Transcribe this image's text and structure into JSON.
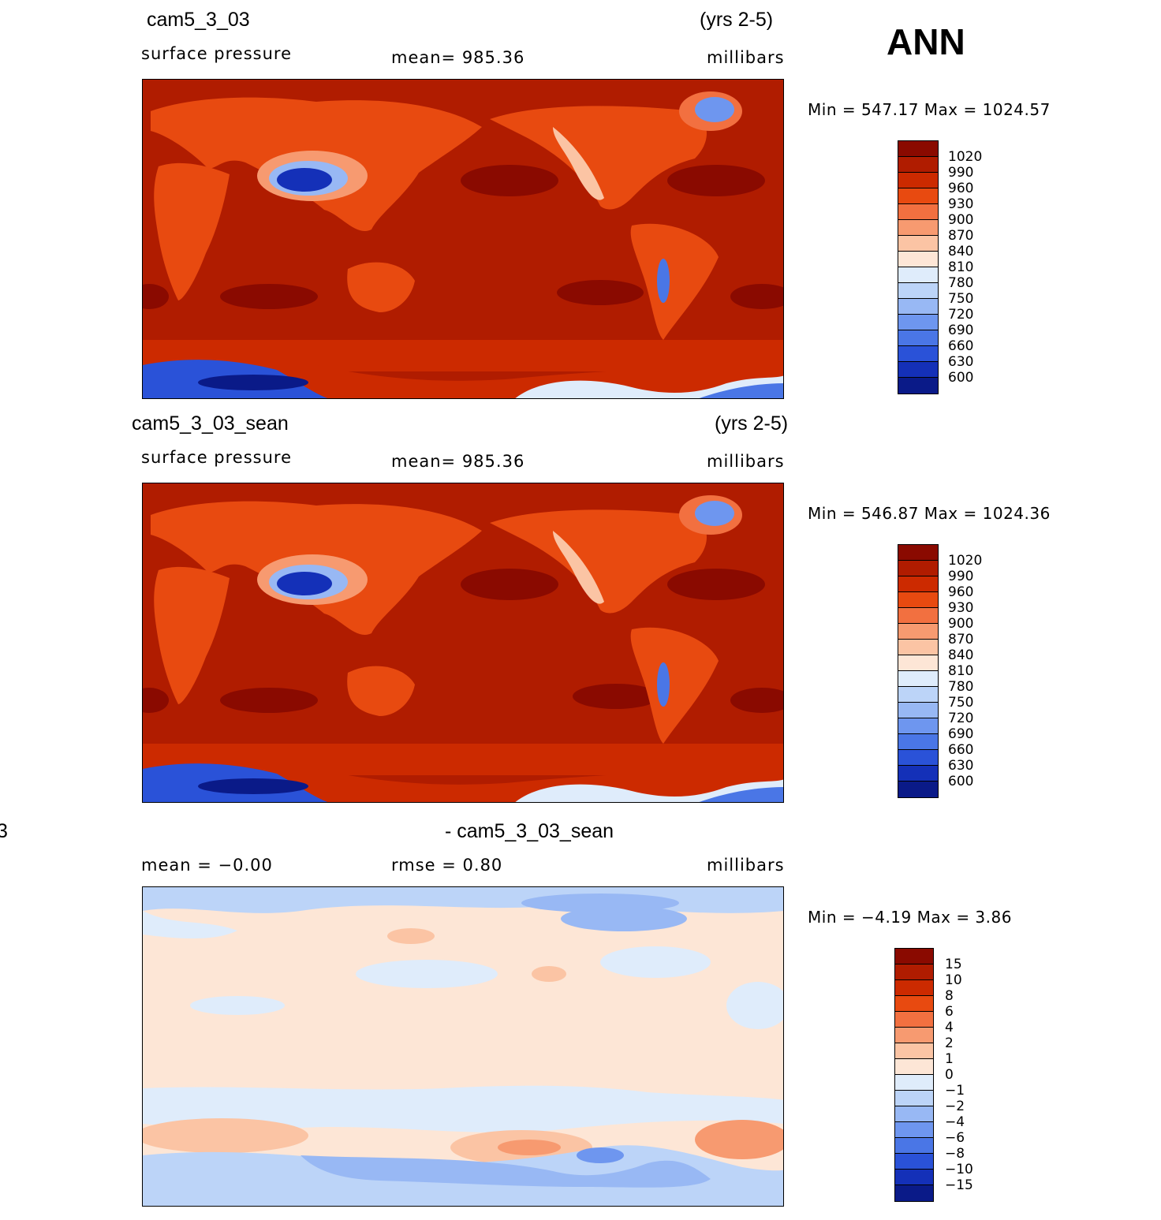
{
  "season": "ANN",
  "panel1": {
    "case": "cam5_3_03",
    "years": "(yrs 2-5)",
    "variable": "surface  pressure",
    "stat": "mean=  985.36",
    "units": "millibars",
    "minmax": "Min  =  547.17  Max  =  1024.57"
  },
  "panel2": {
    "case": "cam5_3_03_sean",
    "years": "(yrs 2-5)",
    "variable": "surface  pressure",
    "stat": "mean=  985.36",
    "units": "millibars",
    "minmax": "Min  =  546.87  Max  =  1024.36"
  },
  "panel3": {
    "title_fragment": "3",
    "title": "- cam5_3_03_sean",
    "mean": "mean  =    −0.00",
    "rmse": "rmse  =      0.80",
    "units": "millibars",
    "minmax": "Min  =    −4.19  Max  =      3.86"
  },
  "colorbar_abs": {
    "labels": [
      "1020",
      "990",
      "960",
      "930",
      "900",
      "870",
      "840",
      "810",
      "780",
      "750",
      "720",
      "690",
      "660",
      "630",
      "600"
    ],
    "colors": [
      "#8a0a00",
      "#b01c00",
      "#cc2a00",
      "#e84a10",
      "#f27040",
      "#f79a70",
      "#fbc4a4",
      "#fde6d6",
      "#dfecfb",
      "#bcd4f8",
      "#98b8f4",
      "#6e96ef",
      "#4a76e6",
      "#2a52d8",
      "#1430b8",
      "#0a1a88"
    ]
  },
  "colorbar_diff": {
    "labels": [
      "15",
      "10",
      "8",
      "6",
      "4",
      "2",
      "1",
      "0",
      "−1",
      "−2",
      "−4",
      "−6",
      "−8",
      "−10",
      "−15"
    ],
    "colors": [
      "#8a0a00",
      "#b01c00",
      "#cc2a00",
      "#e84a10",
      "#f27040",
      "#f79a70",
      "#fbc4a4",
      "#fde6d6",
      "#dfecfb",
      "#bcd4f8",
      "#98b8f4",
      "#6e96ef",
      "#4a76e6",
      "#2a52d8",
      "#1430b8",
      "#0a1a88"
    ]
  }
}
